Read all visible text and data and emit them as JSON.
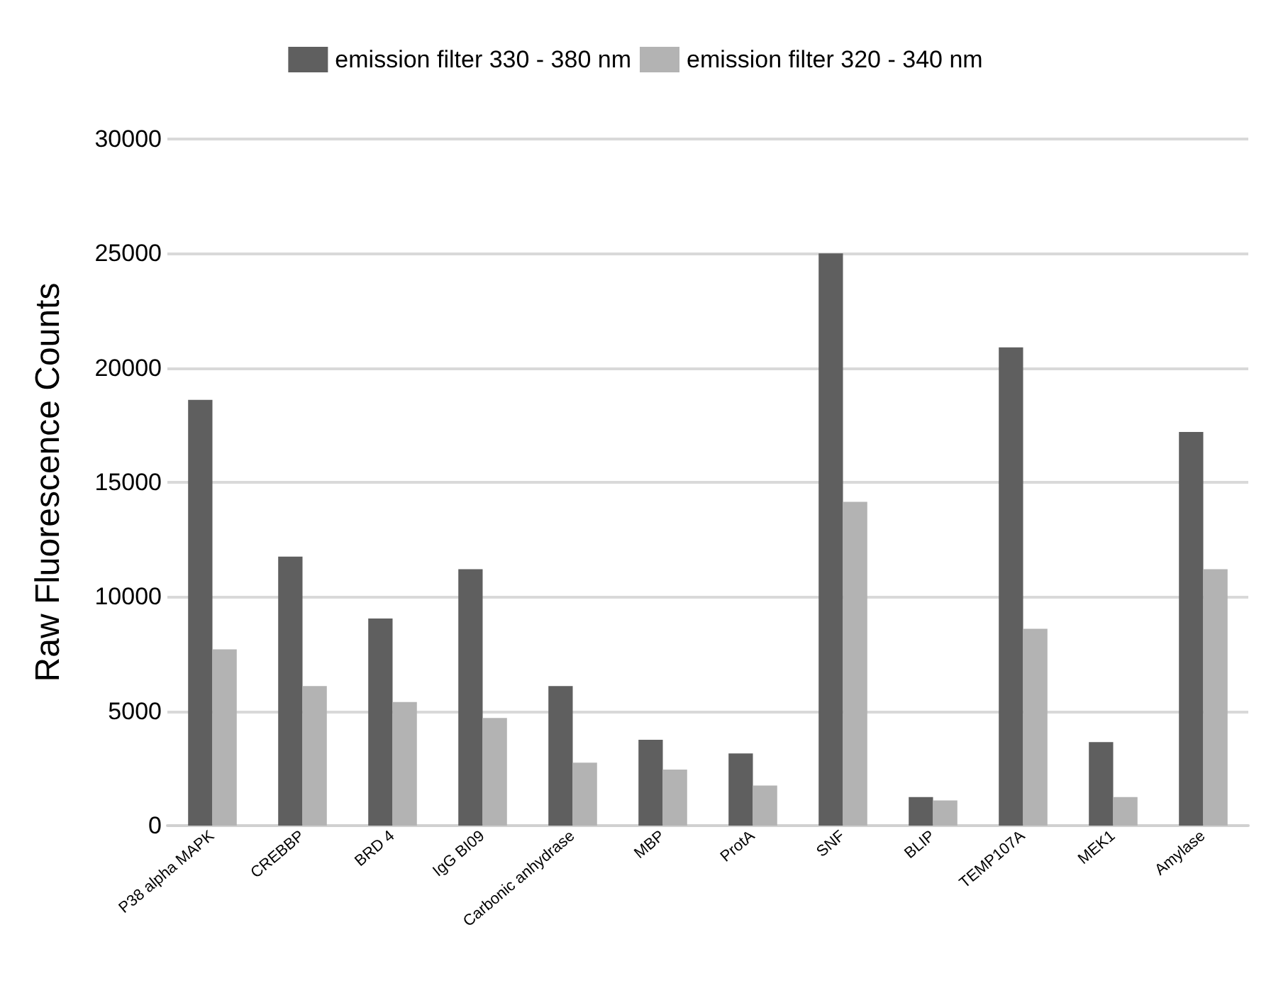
{
  "chart_data": {
    "type": "bar",
    "ylabel": "Raw Fluorescence Counts",
    "categories": [
      "P38 alpha MAPK",
      "CREBBP",
      "BRD 4",
      "IgG BI09",
      "Carbonic anhydrase",
      "MBP",
      "ProtA",
      "SNF",
      "BLIP",
      "TEMP107A",
      "MEK1",
      "Amylase"
    ],
    "series": [
      {
        "name": "emission filter 330 - 380 nm",
        "color": "#5f5f5f",
        "values": [
          18600,
          11750,
          9050,
          11200,
          6100,
          3750,
          3150,
          25000,
          1250,
          20900,
          3650,
          17200
        ]
      },
      {
        "name": "emission filter 320 - 340 nm",
        "color": "#b3b3b3",
        "values": [
          7700,
          6100,
          5400,
          4700,
          2750,
          2450,
          1750,
          14150,
          1100,
          8600,
          1250,
          11200
        ]
      }
    ],
    "ylim": [
      0,
      30000
    ],
    "yticks": [
      0,
      5000,
      10000,
      15000,
      20000,
      25000,
      30000
    ],
    "grid": "y",
    "legend": "top"
  }
}
